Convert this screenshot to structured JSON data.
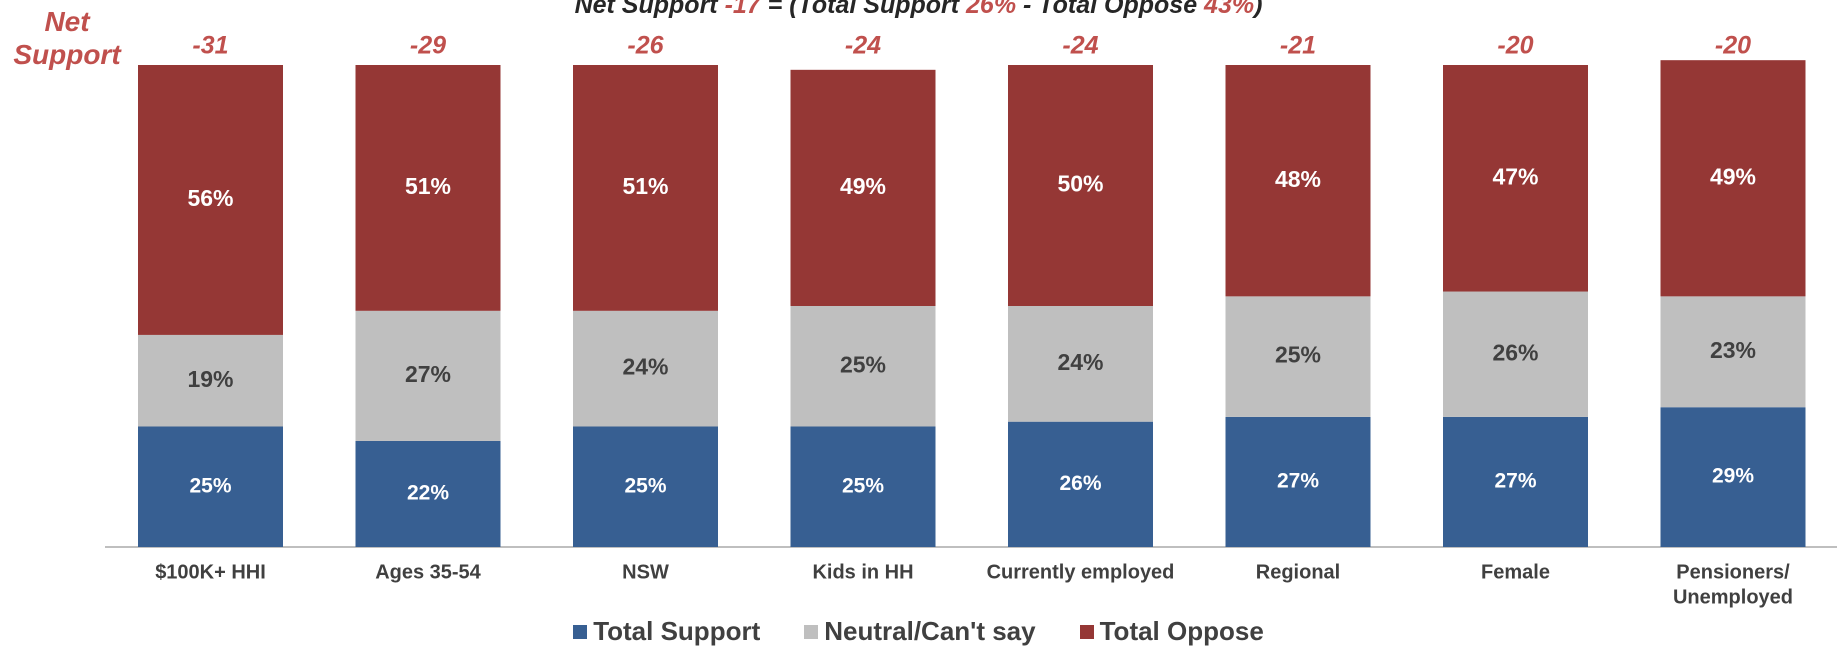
{
  "header": {
    "part1": "Net Support",
    "part2": " -17",
    "part3": " = (Total Support ",
    "part4": "26%",
    "part5": " - Total Oppose ",
    "part6": "43%",
    "part7": ")"
  },
  "net_support_label": "Net Support",
  "colors": {
    "support": "#375f92",
    "neutral": "#bfbfbf",
    "oppose": "#953735",
    "net": "#c0504d",
    "axis": "#bfbfbf",
    "category_text": "#404040"
  },
  "chart_data": {
    "type": "bar",
    "stacked": true,
    "categories": [
      "$100K+ HHI",
      "Ages 35-54",
      "NSW",
      "Kids in HH",
      "Currently employed",
      "Regional",
      "Female",
      "Pensioners/\nUnemployed"
    ],
    "series": [
      {
        "name": "Total Support",
        "values": [
          25,
          22,
          25,
          25,
          26,
          27,
          27,
          29
        ],
        "labels": [
          "25%",
          "22%",
          "25%",
          "25%",
          "26%",
          "27%",
          "27%",
          "29%"
        ]
      },
      {
        "name": "Neutral/Can't say",
        "values": [
          19,
          27,
          24,
          25,
          24,
          25,
          26,
          23
        ],
        "labels": [
          "19%",
          "27%",
          "24%",
          "25%",
          "24%",
          "25%",
          "26%",
          "23%"
        ]
      },
      {
        "name": "Total Oppose",
        "values": [
          56,
          51,
          51,
          49,
          50,
          48,
          47,
          49
        ],
        "labels": [
          "56%",
          "51%",
          "51%",
          "49%",
          "50%",
          "48%",
          "47%",
          "49%"
        ]
      }
    ],
    "net_support": [
      "-31",
      "-29",
      "-26",
      "-24",
      "-24",
      "-21",
      "-20",
      "-20"
    ],
    "ylim": [
      0,
      100
    ],
    "grid": false,
    "legend_position": "bottom"
  }
}
